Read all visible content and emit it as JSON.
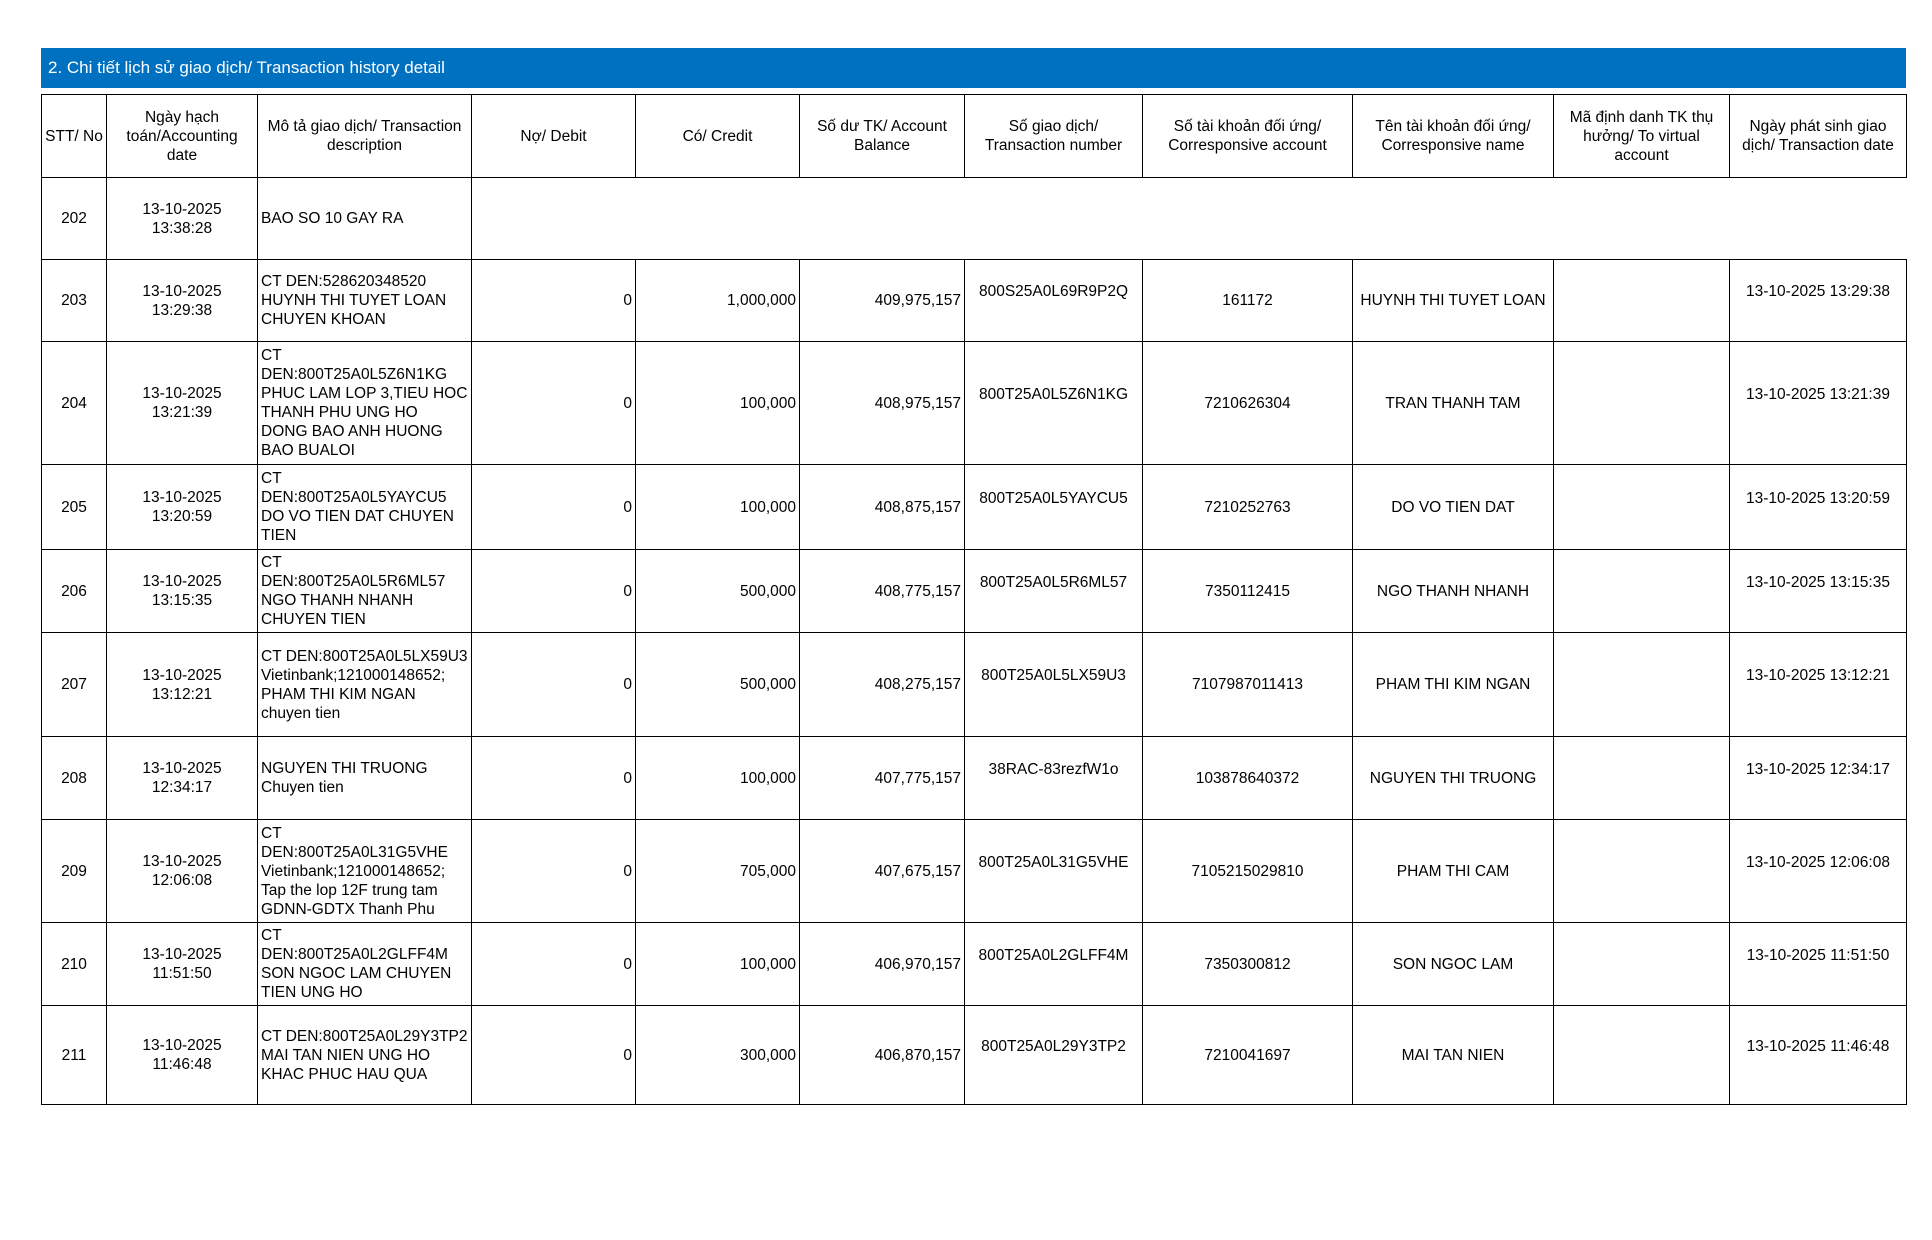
{
  "header": {
    "title": "2. Chi tiết lịch sử giao dịch/ Transaction history detail"
  },
  "table": {
    "columns": [
      "STT/ No",
      "Ngày hạch toán/Accounting date",
      "Mô tả giao dịch/ Transaction description",
      "Nợ/ Debit",
      "Có/ Credit",
      "Số dư TK/ Account Balance",
      "Số giao dịch/ Transaction number",
      "Số tài khoản đối ứng/ Corresponsive account",
      "Tên tài khoản đối ứng/ Corresponsive name",
      "Mã định danh TK thụ hưởng/ To virtual account",
      "Ngày phát sinh giao dịch/ Transaction date"
    ],
    "rows": [
      {
        "no": "202",
        "accounting_date": "13-10-2025 13:38:28",
        "description": "BAO SO 10 GAY RA"
      },
      {
        "no": "203",
        "accounting_date": "13-10-2025 13:29:38",
        "description": "CT DEN:528620348520 HUYNH THI TUYET LOAN CHUYEN KHOAN",
        "debit": "0",
        "credit": "1,000,000",
        "balance": "409,975,157",
        "txn_no": "800S25A0L69R9P2Q",
        "counter_account": "161172",
        "counter_name": "HUYNH THI TUYET LOAN",
        "txn_date": "13-10-2025 13:29:38"
      },
      {
        "no": "204",
        "accounting_date": "13-10-2025 13:21:39",
        "description": "CT DEN:800T25A0L5Z6N1KG PHUC LAM LOP 3,TIEU HOC THANH PHU UNG HO DONG BAO ANH HUONG BAO BUALOI",
        "debit": "0",
        "credit": "100,000",
        "balance": "408,975,157",
        "txn_no": "800T25A0L5Z6N1KG",
        "counter_account": "7210626304",
        "counter_name": "TRAN THANH TAM",
        "txn_date": "13-10-2025 13:21:39"
      },
      {
        "no": "205",
        "accounting_date": "13-10-2025 13:20:59",
        "description": "CT DEN:800T25A0L5YAYCU5 DO VO TIEN DAT CHUYEN TIEN",
        "debit": "0",
        "credit": "100,000",
        "balance": "408,875,157",
        "txn_no": "800T25A0L5YAYCU5",
        "counter_account": "7210252763",
        "counter_name": "DO VO TIEN DAT",
        "txn_date": "13-10-2025 13:20:59"
      },
      {
        "no": "206",
        "accounting_date": "13-10-2025 13:15:35",
        "description": "CT DEN:800T25A0L5R6ML57 NGO THANH NHANH CHUYEN TIEN",
        "debit": "0",
        "credit": "500,000",
        "balance": "408,775,157",
        "txn_no": "800T25A0L5R6ML57",
        "counter_account": "7350112415",
        "counter_name": "NGO THANH NHANH",
        "txn_date": "13-10-2025 13:15:35"
      },
      {
        "no": "207",
        "accounting_date": "13-10-2025 13:12:21",
        "description": "CT DEN:800T25A0L5LX59U3 Vietinbank;121000148652; PHAM THI KIM NGAN chuyen tien",
        "debit": "0",
        "credit": "500,000",
        "balance": "408,275,157",
        "txn_no": "800T25A0L5LX59U3",
        "counter_account": "7107987011413",
        "counter_name": "PHAM THI KIM NGAN",
        "txn_date": "13-10-2025 13:12:21"
      },
      {
        "no": "208",
        "accounting_date": "13-10-2025 12:34:17",
        "description": "NGUYEN THI TRUONG Chuyen tien",
        "debit": "0",
        "credit": "100,000",
        "balance": "407,775,157",
        "txn_no": "38RAC-83rezfW1o",
        "counter_account": "103878640372",
        "counter_name": "NGUYEN THI TRUONG",
        "txn_date": "13-10-2025 12:34:17"
      },
      {
        "no": "209",
        "accounting_date": "13-10-2025 12:06:08",
        "description": "CT DEN:800T25A0L31G5VHE Vietinbank;121000148652; Tap the lop 12F trung tam GDNN-GDTX Thanh Phu",
        "debit": "0",
        "credit": "705,000",
        "balance": "407,675,157",
        "txn_no": "800T25A0L31G5VHE",
        "counter_account": "7105215029810",
        "counter_name": "PHAM THI CAM",
        "txn_date": "13-10-2025 12:06:08"
      },
      {
        "no": "210",
        "accounting_date": "13-10-2025 11:51:50",
        "description": "CT DEN:800T25A0L2GLFF4M SON NGOC LAM CHUYEN TIEN UNG HO",
        "debit": "0",
        "credit": "100,000",
        "balance": "406,970,157",
        "txn_no": "800T25A0L2GLFF4M",
        "counter_account": "7350300812",
        "counter_name": "SON NGOC LAM",
        "txn_date": "13-10-2025 11:51:50"
      },
      {
        "no": "211",
        "accounting_date": "13-10-2025 11:46:48",
        "description": "CT DEN:800T25A0L29Y3TP2 MAI TAN NIEN UNG HO KHAC PHUC HAU QUA",
        "debit": "0",
        "credit": "300,000",
        "balance": "406,870,157",
        "txn_no": "800T25A0L29Y3TP2",
        "counter_account": "7210041697",
        "counter_name": "MAI TAN NIEN",
        "txn_date": "13-10-2025 11:46:48"
      }
    ]
  }
}
